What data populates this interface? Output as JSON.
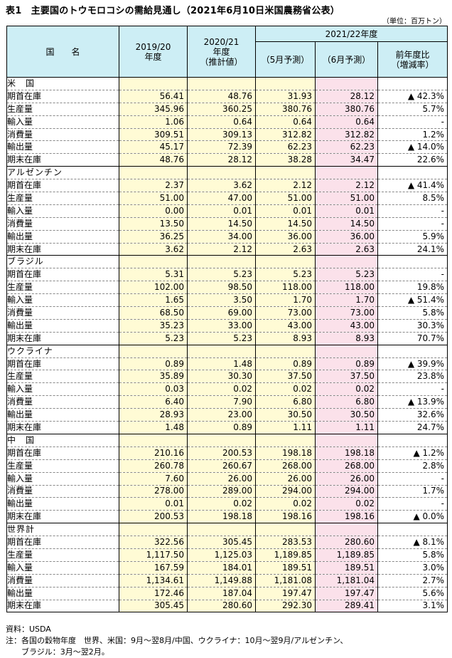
{
  "title": "表1　主要国のトウモロコシの需給見通し（2021年6月10日米国農務省公表）",
  "unit": "（単位：百万トン）",
  "header": {
    "country": "国　　名",
    "y1a": "2019/20",
    "y1b": "年度",
    "y2a": "2020/21",
    "y2b": "年度",
    "y2c": "（推計値）",
    "group": "2021/22年度",
    "may": "（5月予測）",
    "jun": "（6月予測）",
    "chg_a": "前年度比",
    "chg_b": "（増減率）"
  },
  "countries": [
    {
      "name": "米　国",
      "rows": [
        {
          "item": "期首在庫",
          "v": [
            "56.41",
            "48.76",
            "31.93",
            "28.12",
            "▲ 42.3%"
          ]
        },
        {
          "item": "生産量",
          "v": [
            "345.96",
            "360.25",
            "380.76",
            "380.76",
            "5.7%"
          ]
        },
        {
          "item": "輸入量",
          "v": [
            "1.06",
            "0.64",
            "0.64",
            "0.64",
            "-"
          ]
        },
        {
          "item": "消費量",
          "v": [
            "309.51",
            "309.13",
            "312.82",
            "312.82",
            "1.2%"
          ]
        },
        {
          "item": "輸出量",
          "v": [
            "45.17",
            "72.39",
            "62.23",
            "62.23",
            "▲ 14.0%"
          ]
        },
        {
          "item": "期末在庫",
          "v": [
            "48.76",
            "28.12",
            "38.28",
            "34.47",
            "22.6%"
          ]
        }
      ]
    },
    {
      "name": "アルゼンチン",
      "rows": [
        {
          "item": "期首在庫",
          "v": [
            "2.37",
            "3.62",
            "2.12",
            "2.12",
            "▲ 41.4%"
          ]
        },
        {
          "item": "生産量",
          "v": [
            "51.00",
            "47.00",
            "51.00",
            "51.00",
            "8.5%"
          ]
        },
        {
          "item": "輸入量",
          "v": [
            "0.00",
            "0.01",
            "0.01",
            "0.01",
            "-"
          ]
        },
        {
          "item": "消費量",
          "v": [
            "13.50",
            "14.50",
            "14.50",
            "14.50",
            "-"
          ]
        },
        {
          "item": "輸出量",
          "v": [
            "36.25",
            "34.00",
            "36.00",
            "36.00",
            "5.9%"
          ]
        },
        {
          "item": "期末在庫",
          "v": [
            "3.62",
            "2.12",
            "2.63",
            "2.63",
            "24.1%"
          ]
        }
      ]
    },
    {
      "name": "ブラジル",
      "rows": [
        {
          "item": "期首在庫",
          "v": [
            "5.31",
            "5.23",
            "5.23",
            "5.23",
            "-"
          ]
        },
        {
          "item": "生産量",
          "v": [
            "102.00",
            "98.50",
            "118.00",
            "118.00",
            "19.8%"
          ]
        },
        {
          "item": "輸入量",
          "v": [
            "1.65",
            "3.50",
            "1.70",
            "1.70",
            "▲ 51.4%"
          ]
        },
        {
          "item": "消費量",
          "v": [
            "68.50",
            "69.00",
            "73.00",
            "73.00",
            "5.8%"
          ]
        },
        {
          "item": "輸出量",
          "v": [
            "35.23",
            "33.00",
            "43.00",
            "43.00",
            "30.3%"
          ]
        },
        {
          "item": "期末在庫",
          "v": [
            "5.23",
            "5.23",
            "8.93",
            "8.93",
            "70.7%"
          ]
        }
      ]
    },
    {
      "name": "ウクライナ",
      "rows": [
        {
          "item": "期首在庫",
          "v": [
            "0.89",
            "1.48",
            "0.89",
            "0.89",
            "▲ 39.9%"
          ]
        },
        {
          "item": "生産量",
          "v": [
            "35.89",
            "30.30",
            "37.50",
            "37.50",
            "23.8%"
          ]
        },
        {
          "item": "輸入量",
          "v": [
            "0.03",
            "0.02",
            "0.02",
            "0.02",
            "-"
          ]
        },
        {
          "item": "消費量",
          "v": [
            "6.40",
            "7.90",
            "6.80",
            "6.80",
            "▲ 13.9%"
          ]
        },
        {
          "item": "輸出量",
          "v": [
            "28.93",
            "23.00",
            "30.50",
            "30.50",
            "32.6%"
          ]
        },
        {
          "item": "期末在庫",
          "v": [
            "1.48",
            "0.89",
            "1.11",
            "1.11",
            "24.7%"
          ]
        }
      ]
    },
    {
      "name": "中　国",
      "rows": [
        {
          "item": "期首在庫",
          "v": [
            "210.16",
            "200.53",
            "198.18",
            "198.18",
            "▲ 1.2%"
          ]
        },
        {
          "item": "生産量",
          "v": [
            "260.78",
            "260.67",
            "268.00",
            "268.00",
            "2.8%"
          ]
        },
        {
          "item": "輸入量",
          "v": [
            "7.60",
            "26.00",
            "26.00",
            "26.00",
            "-"
          ]
        },
        {
          "item": "消費量",
          "v": [
            "278.00",
            "289.00",
            "294.00",
            "294.00",
            "1.7%"
          ]
        },
        {
          "item": "輸出量",
          "v": [
            "0.01",
            "0.02",
            "0.02",
            "0.02",
            "-"
          ]
        },
        {
          "item": "期末在庫",
          "v": [
            "200.53",
            "198.18",
            "198.16",
            "198.16",
            "▲ 0.0%"
          ]
        }
      ]
    },
    {
      "name": "世界計",
      "rows": [
        {
          "item": "期首在庫",
          "v": [
            "322.56",
            "305.45",
            "283.53",
            "280.60",
            "▲ 8.1%"
          ]
        },
        {
          "item": "生産量",
          "v": [
            "1,117.50",
            "1,125.03",
            "1,189.85",
            "1,189.85",
            "5.8%"
          ]
        },
        {
          "item": "輸入量",
          "v": [
            "167.59",
            "184.01",
            "189.51",
            "189.51",
            "3.0%"
          ]
        },
        {
          "item": "消費量",
          "v": [
            "1,134.61",
            "1,149.88",
            "1,181.08",
            "1,181.04",
            "2.7%"
          ]
        },
        {
          "item": "輸出量",
          "v": [
            "172.46",
            "187.04",
            "197.47",
            "197.47",
            "5.6%"
          ]
        },
        {
          "item": "期末在庫",
          "v": [
            "305.45",
            "280.60",
            "292.30",
            "289.41",
            "3.1%"
          ]
        }
      ]
    }
  ],
  "notes": {
    "source": "資料：USDA",
    "note1": "注：各国の穀物年度　世界、米国：9月～翌8月/中国、ウクライナ：10月～翌9月/アルゼンチン、",
    "note2": "　　ブラジル：3月～翌2月。"
  },
  "colors": {
    "header_bg": "#cdeef5",
    "yellow_cols": "#fffbd5",
    "pink_col": "#fbe1ea"
  }
}
